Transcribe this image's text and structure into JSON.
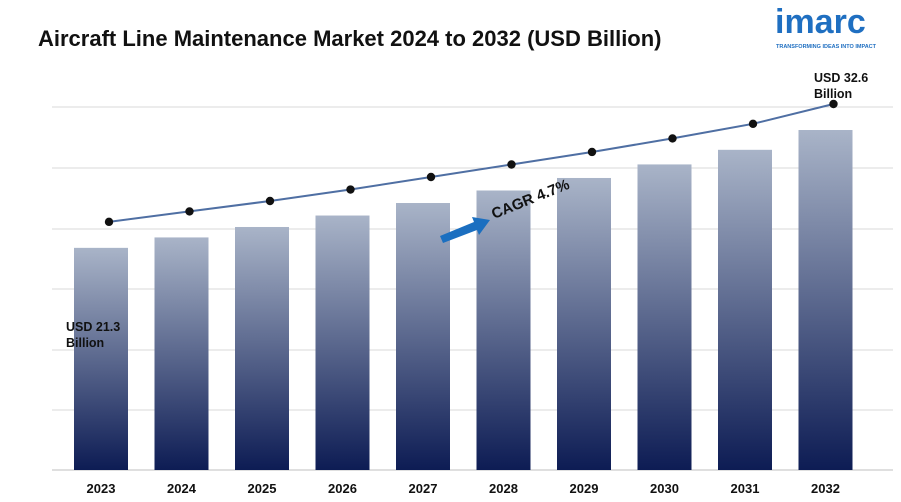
{
  "chart_data": {
    "type": "bar",
    "title": "Aircraft Line Maintenance Market 2024 to 2032 (USD Billion)",
    "categories": [
      "2023",
      "2024",
      "2025",
      "2026",
      "2027",
      "2028",
      "2029",
      "2030",
      "2031",
      "2032"
    ],
    "values": [
      21.3,
      22.3,
      23.3,
      24.4,
      25.6,
      26.8,
      28.0,
      29.3,
      30.7,
      32.6
    ],
    "ylim": [
      0,
      36
    ],
    "grid": true,
    "trend_line": true,
    "annotations": {
      "start_line1": "USD 21.3",
      "start_line2": "Billion",
      "end_line1": "USD 32.6",
      "end_line2": "Billion",
      "cagr": "CAGR 4.7%"
    }
  },
  "logo": {
    "word": "imarc",
    "tagline": "TRANSFORMING IDEAS INTO IMPACT"
  },
  "colors": {
    "bar_top": "#a9b4c8",
    "bar_bottom": "#0d1c54",
    "line": "#4f6fa3",
    "arrow": "#1b6fc0",
    "brand": "#1f6fc1"
  }
}
